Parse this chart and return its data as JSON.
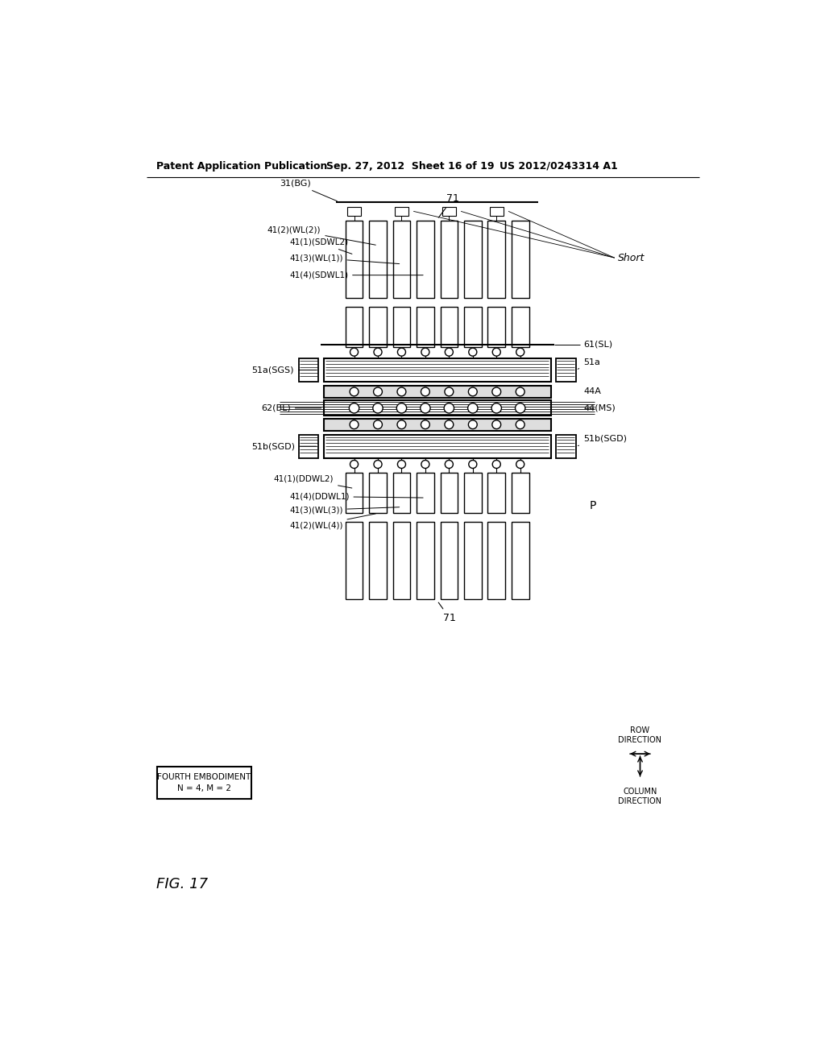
{
  "header_left": "Patent Application Publication",
  "header_center": "Sep. 27, 2012  Sheet 16 of 19",
  "header_right": "US 2012/0243314 A1",
  "bg_color": "#ffffff",
  "fig_label": "FIG. 17",
  "label_box_line1": "FOURTH EMBODIMENT",
  "label_box_line2": "N = 4, M = 2",
  "lbl_71_top": "71",
  "lbl_71_bot": "71",
  "lbl_31BG": "31(BG)",
  "lbl_41_2_WL2": "41(2)(WL(2))",
  "lbl_41_1_SDWL2": "41(1)(SDWL2)",
  "lbl_41_3_WL1": "41(3)(WL(1))",
  "lbl_41_4_SDWL1": "41(4)(SDWL1)",
  "lbl_51a_SGS_L": "51a(SGS)",
  "lbl_51a_SGS_R": "51a",
  "lbl_44A": "44A",
  "lbl_62_BL": "62(BL)",
  "lbl_44_MS": "44(MS)",
  "lbl_61_SL": "61(SL)",
  "lbl_51b_SGD_L": "51b(SGD)",
  "lbl_51b_SGD_R": "51b(SGD)",
  "lbl_41_1_DDWL2": "41(1)(DDWL2)",
  "lbl_41_4_DDWL1": "41(4)(DDWL1)",
  "lbl_41_3_WL3": "41(3)(WL(3))",
  "lbl_41_2_WL4": "41(2)(WL(4))",
  "lbl_P": "P",
  "lbl_Short": "Short",
  "lbl_col_dir": "COLUMN\nDIRECTION",
  "lbl_row_dir": "ROW\nDIRECTION"
}
